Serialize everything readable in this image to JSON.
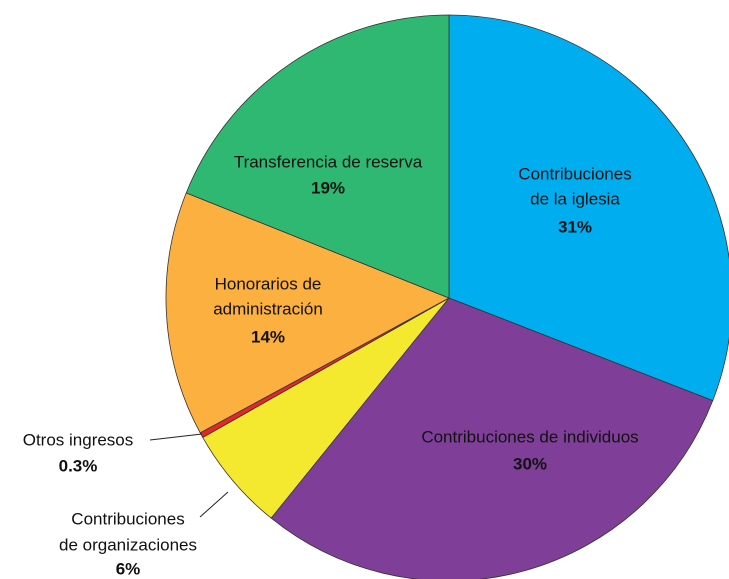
{
  "chart_data": {
    "type": "pie",
    "categories": [
      [
        "Contribuciones",
        "de la iglesia"
      ],
      [
        "Contribuciones de individuos"
      ],
      [
        "Contribuciones",
        "de organizaciones"
      ],
      [
        "Otros ingresos"
      ],
      [
        "Honorarios de",
        "administración"
      ],
      [
        "Transferencia de reserva"
      ]
    ],
    "values": [
      31,
      30,
      6,
      0.3,
      14,
      19
    ],
    "value_labels": [
      "31%",
      "30%",
      "6%",
      "0.3%",
      "14%",
      "19%"
    ],
    "colors": [
      "#00aeef",
      "#7f3f98",
      "#f5e92f",
      "#e8262a",
      "#fbb040",
      "#2eb872"
    ]
  }
}
